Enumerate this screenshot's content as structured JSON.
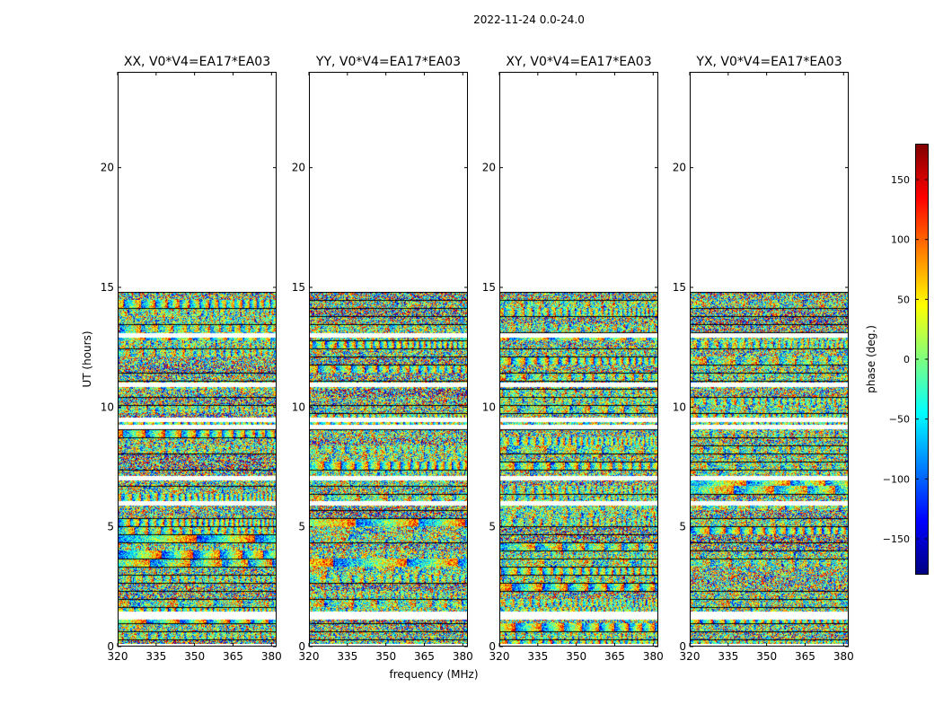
{
  "chart_data": {
    "type": "heatmap",
    "suptitle": "2022-11-24 0.0-24.0",
    "xlabel": "frequency (MHz)",
    "ylabel": "UT (hours)",
    "xlim": [
      320,
      382
    ],
    "ylim": [
      0,
      24
    ],
    "x_ticks": [
      320,
      335,
      350,
      365,
      380
    ],
    "y_ticks": [
      0,
      5,
      10,
      15,
      20
    ],
    "data_time_range_hours": [
      0.1,
      14.8
    ],
    "panels": [
      {
        "title": "XX, V0*V4=EA17*EA03",
        "polarization": "XX"
      },
      {
        "title": "YY, V0*V4=EA17*EA03",
        "polarization": "YY"
      },
      {
        "title": "XY, V0*V4=EA17*EA03",
        "polarization": "XY"
      },
      {
        "title": "YX, V0*V4=EA17*EA03",
        "polarization": "YX"
      }
    ],
    "flagged_gaps_hours": [
      1.25,
      1.4,
      6.0,
      7.05,
      9.2,
      9.5,
      10.95,
      13.0
    ],
    "colorbar": {
      "label": "phase (deg.)",
      "range": [
        -180,
        180
      ],
      "ticks": [
        150,
        100,
        50,
        0,
        -50,
        -100,
        -150
      ],
      "tick_labels": [
        "150",
        "100",
        "50",
        "0",
        "−50",
        "−100",
        "−150"
      ],
      "colormap": "jet",
      "colors": [
        "#00007f",
        "#0000ff",
        "#007fff",
        "#00ffff",
        "#7fff7f",
        "#ffff00",
        "#ff7f00",
        "#ff0000",
        "#7f0000"
      ]
    }
  }
}
